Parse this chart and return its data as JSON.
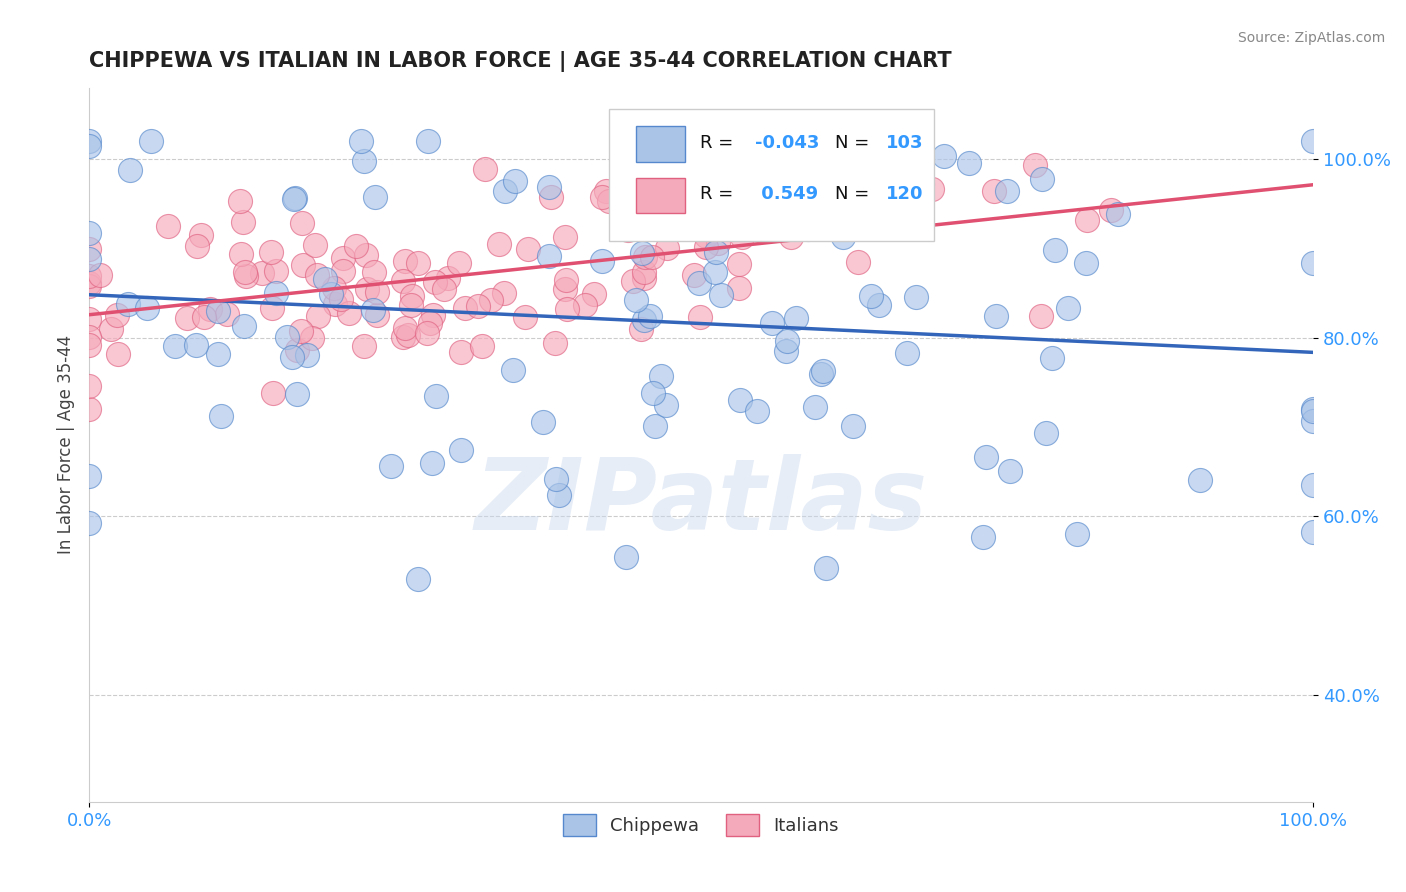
{
  "title": "CHIPPEWA VS ITALIAN IN LABOR FORCE | AGE 35-44 CORRELATION CHART",
  "source_text": "Source: ZipAtlas.com",
  "ylabel": "In Labor Force | Age 35-44",
  "xlim": [
    0.0,
    1.0
  ],
  "ylim": [
    0.28,
    1.08
  ],
  "chippewa_R": -0.043,
  "chippewa_N": 103,
  "italians_R": 0.549,
  "italians_N": 120,
  "chippewa_color": "#aac4e8",
  "italians_color": "#f5aabb",
  "chippewa_edge_color": "#5588cc",
  "italians_edge_color": "#e06080",
  "chippewa_line_color": "#3366bb",
  "italians_line_color": "#e05070",
  "tick_color": "#3399ff",
  "watermark": "ZIPatlas",
  "watermark_color": "#c8d8ee",
  "grid_color": "#cccccc",
  "background_color": "#ffffff",
  "title_color": "#222222",
  "source_color": "#888888",
  "ylabel_color": "#444444"
}
